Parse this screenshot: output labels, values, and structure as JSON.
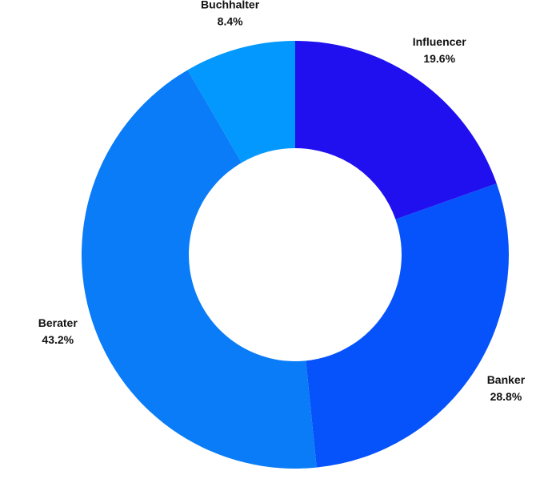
{
  "chart_data": {
    "type": "donut",
    "categories": [
      "Influencer",
      "Banker",
      "Berater",
      "Buchhalter"
    ],
    "values": [
      19.6,
      28.8,
      43.2,
      8.4
    ],
    "value_labels": [
      "19.6%",
      "28.8%",
      "43.2%",
      "8.4%"
    ],
    "colors": [
      "#2010f0",
      "#0652fb",
      "#0a7cf7",
      "#0398fd"
    ]
  }
}
